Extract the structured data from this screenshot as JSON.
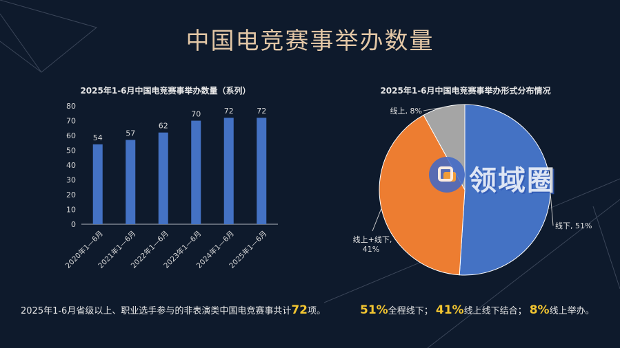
{
  "page": {
    "title": "中国电竞赛事举办数量"
  },
  "chart_data": [
    {
      "type": "bar",
      "title": "2025年1-6月中国电竞赛事举办数量（系列）",
      "categories": [
        "2020年1—6月",
        "2021年1—6月",
        "2022年1—6月",
        "2023年1—6月",
        "2024年1—6月",
        "2025年1—6月"
      ],
      "values": [
        54,
        57,
        62,
        70,
        72,
        72
      ],
      "ylim": [
        0,
        80
      ],
      "yticks": [
        0,
        10,
        20,
        30,
        40,
        50,
        60,
        70,
        80
      ],
      "grid": false,
      "bar_color": "#4472c4"
    },
    {
      "type": "pie",
      "title": "2025年1-6月中国电竞赛事举办形式分布情况",
      "slices": [
        {
          "label": "线下",
          "value": 51,
          "display": "线下, 51%",
          "color": "#4472c4"
        },
        {
          "label": "线上+线下",
          "value": 41,
          "display_line1": "线上+线下,",
          "display_line2": "41%",
          "color": "#ed7d31"
        },
        {
          "label": "线上",
          "value": 8,
          "display": "线上, 8%",
          "color": "#a5a5a5"
        }
      ]
    }
  ],
  "footer": {
    "left_pre": "2025年1-6月省级以上、职业选手参与的非表演类中国电竞赛事共计",
    "left_num": "72",
    "left_post": "项。",
    "right_p1": "51%",
    "right_t1": "全程线下；",
    "right_p2": "41%",
    "right_t2": "线上线下结合；",
    "right_p3": "8%",
    "right_t3": "线上举办。"
  },
  "watermark": {
    "text": "领域圈"
  },
  "colors": {
    "background": "#0e1a2c",
    "title": "#e3c7a6",
    "highlight": "#f2c531"
  }
}
